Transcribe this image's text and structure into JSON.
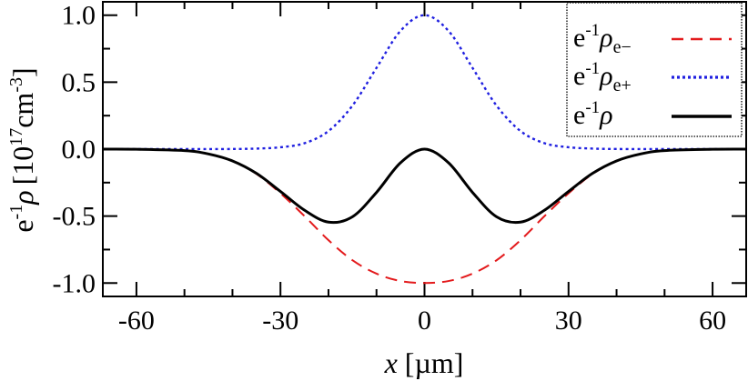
{
  "chart_data": {
    "type": "line",
    "xlabel": "x [µm]",
    "xlabel_var": "x",
    "xlabel_unit": "[µm]",
    "ylabel": "e-1ρ [1017cm-3]",
    "ylabel_parts": {
      "e": "e",
      "neg1": "-1",
      "rho": "ρ",
      "open": "[10",
      "exp": "17",
      "unit": "cm",
      "exp2": "-3",
      "close": "]"
    },
    "xlim": [
      -67,
      67
    ],
    "ylim": [
      -1.1,
      1.1
    ],
    "xticks": [
      -60,
      -30,
      0,
      30,
      60
    ],
    "xtick_labels": [
      "-60",
      "-30",
      "0",
      "30",
      "60"
    ],
    "yticks": [
      -1.0,
      -0.5,
      0.0,
      0.5,
      1.0
    ],
    "ytick_labels": [
      "-1.0",
      "-0.5",
      "0.0",
      "0.5",
      "1.0"
    ],
    "grid": false,
    "legend_position": "top-right",
    "series": [
      {
        "name": "e-1ρe−",
        "label_parts": {
          "e": "e",
          "neg1": "-1",
          "rho": "ρ",
          "sub": "e−"
        },
        "color": "#e31a1c",
        "style": "dashed",
        "x": [
          -67,
          -60,
          -50,
          -45,
          -40,
          -35,
          -30,
          -25,
          -20,
          -15,
          -10,
          -5,
          0,
          5,
          10,
          15,
          20,
          25,
          30,
          35,
          40,
          45,
          50,
          60,
          67
        ],
        "y": [
          0.0,
          -0.001,
          -0.011,
          -0.036,
          -0.089,
          -0.185,
          -0.33,
          -0.5,
          -0.68,
          -0.83,
          -0.93,
          -0.985,
          -1.0,
          -0.985,
          -0.93,
          -0.83,
          -0.68,
          -0.5,
          -0.33,
          -0.185,
          -0.089,
          -0.036,
          -0.011,
          -0.001,
          0.0
        ]
      },
      {
        "name": "e-1ρe+",
        "label_parts": {
          "e": "e",
          "neg1": "-1",
          "rho": "ρ",
          "sub": "e+"
        },
        "color": "#1f1fe0",
        "style": "dotted",
        "x": [
          -67,
          -50,
          -40,
          -35,
          -30,
          -25,
          -20,
          -15,
          -10,
          -5,
          0,
          5,
          10,
          15,
          20,
          25,
          30,
          35,
          40,
          50,
          67
        ],
        "y": [
          0.0,
          0.0,
          0.001,
          0.004,
          0.014,
          0.044,
          0.135,
          0.325,
          0.607,
          0.883,
          1.0,
          0.883,
          0.607,
          0.325,
          0.135,
          0.044,
          0.014,
          0.004,
          0.001,
          0.0,
          0.0
        ]
      },
      {
        "name": "e-1ρ",
        "label_parts": {
          "e": "e",
          "neg1": "-1",
          "rho": "ρ",
          "sub": ""
        },
        "color": "#000000",
        "style": "solid",
        "x": [
          -67,
          -60,
          -50,
          -45,
          -40,
          -35,
          -30,
          -25,
          -20,
          -15,
          -10,
          -5,
          0,
          5,
          10,
          15,
          20,
          25,
          30,
          35,
          40,
          45,
          50,
          60,
          67
        ],
        "y": [
          0.0,
          -0.001,
          -0.011,
          -0.036,
          -0.088,
          -0.181,
          -0.316,
          -0.456,
          -0.545,
          -0.505,
          -0.323,
          -0.102,
          0.0,
          -0.102,
          -0.323,
          -0.505,
          -0.545,
          -0.456,
          -0.316,
          -0.181,
          -0.088,
          -0.036,
          -0.011,
          -0.001,
          0.0
        ]
      }
    ]
  }
}
